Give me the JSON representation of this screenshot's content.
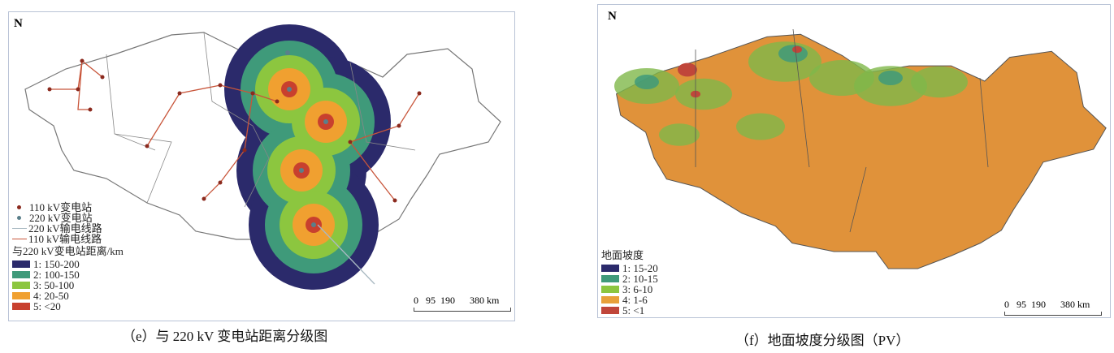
{
  "panel_e": {
    "north": "N",
    "legend": {
      "symbols": [
        {
          "label": "110 kV变电站",
          "color": "#8b2a1e",
          "kind": "dot"
        },
        {
          "label": "220 kV变电站",
          "color": "#5a7f8a",
          "kind": "dot"
        },
        {
          "label": "220 kV输电线路",
          "color": "#a9b9c2",
          "kind": "line"
        },
        {
          "label": "110 kV输电线路",
          "color": "#c8553a",
          "kind": "line"
        }
      ],
      "title": "与220 kV变电站距离/km",
      "classes": [
        {
          "label": "1: 150-200",
          "color": "#2b2a6b"
        },
        {
          "label": "2: 100-150",
          "color": "#3f9a7a"
        },
        {
          "label": "3: 50-100",
          "color": "#8cc63f"
        },
        {
          "label": "4: 20-50",
          "color": "#f0a030"
        },
        {
          "label": "5: <20",
          "color": "#c8402e"
        }
      ]
    },
    "scale": "0   95  190      380 km",
    "caption": "（e）与 220 kV 变电站距离分级图"
  },
  "panel_f": {
    "north": "N",
    "legend": {
      "title": "地面坡度",
      "classes": [
        {
          "label": "1: 15-20",
          "color": "#2b2a6b"
        },
        {
          "label": "2: 10-15",
          "color": "#3f9a7a"
        },
        {
          "label": "3: 6-10",
          "color": "#8cc63f"
        },
        {
          "label": "4: 1-6",
          "color": "#e8a03a"
        },
        {
          "label": "5: <1",
          "color": "#c0463a"
        }
      ]
    },
    "scale": "0   95  190      380 km",
    "caption": "（f）地面坡度分级图（PV）"
  }
}
